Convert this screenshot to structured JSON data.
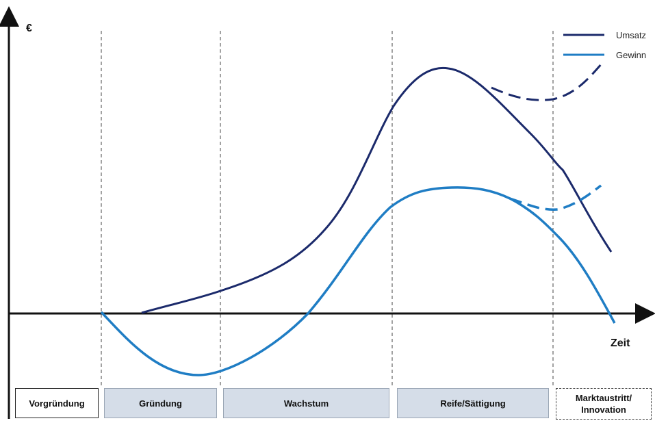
{
  "axis": {
    "y_label": "€",
    "x_label": "Zeit"
  },
  "legend": [
    {
      "label": "Umsatz",
      "color": "#1b2a6b"
    },
    {
      "label": "Gewinn",
      "color": "#1f7dc4"
    }
  ],
  "colors": {
    "umsatz": "#1b2a6b",
    "gewinn": "#1f7dc4",
    "phase_fill": "#d5dde8"
  },
  "phases": [
    {
      "label": "Vorgründung",
      "style": "plain"
    },
    {
      "label": "Gründung",
      "style": "filled"
    },
    {
      "label": "Wachstum",
      "style": "filled"
    },
    {
      "label": "Reife/Sättigung",
      "style": "filled"
    },
    {
      "label": "Marktaustritt/\nInnovation",
      "style": "dashed"
    }
  ]
}
